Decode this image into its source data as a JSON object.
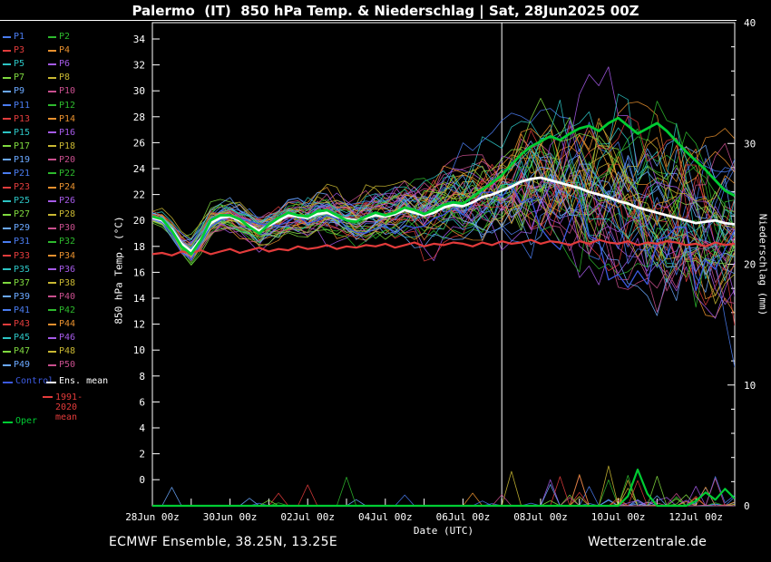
{
  "title": "Palermo  (IT)  850 hPa Temp. & Niederschlag | Sat, 28Jun2025 00Z",
  "footer": {
    "left": "ECMWF Ensemble, 38.25N, 13.25E",
    "right": "Wetterzentrale.de"
  },
  "colors": {
    "background": "#000000",
    "foreground": "#ffffff"
  },
  "axes": {
    "left_label": "850 hPa Temp. (°C)",
    "right_label": "Niederschlag (mm)",
    "x_label": "Date (UTC)",
    "temp_ticks": [
      34,
      32,
      30,
      28,
      26,
      24,
      22,
      20,
      18,
      16,
      14,
      12,
      10,
      8,
      6,
      4,
      2,
      0
    ],
    "precip_ticks": [
      40,
      30,
      20,
      10,
      0
    ],
    "x_ticks": [
      "28Jun 00z",
      "30Jun 00z",
      "02Jul 00z",
      "04Jul 00z",
      "06Jul 00z",
      "08Jul 00z",
      "10Jul 00z",
      "12Jul 00z"
    ]
  },
  "legend": {
    "members_prefix": "P",
    "member_count": 50,
    "palette": [
      "#4a7cf0",
      "#2db92d",
      "#e03c3c",
      "#e8902e",
      "#2cc4c4",
      "#a55ae8",
      "#7fd93f",
      "#c9b832",
      "#6aa8ff",
      "#c94f8e"
    ],
    "special": [
      {
        "label": "Control",
        "color": "#3c5ae0"
      },
      {
        "label": "Ens. mean",
        "color": "#ffffff"
      },
      {
        "label": "1991-2020 mean",
        "color": "#e33b3b"
      },
      {
        "label": "Oper",
        "color": "#00cc33"
      }
    ]
  },
  "chart_data": {
    "type": "line",
    "title": "Palermo (IT) 850 hPa Temp. & Niederschlag | Sat, 28Jun2025 00Z",
    "xlabel": "Date (UTC)",
    "ylabel_left": "850 hPa Temp. (°C)",
    "ylabel_right": "Niederschlag (mm)",
    "y_left_range": [
      0,
      34
    ],
    "y_right_range": [
      0,
      40
    ],
    "x_tick_labels": [
      "28Jun 00z",
      "30Jun 00z",
      "02Jul 00z",
      "04Jul 00z",
      "06Jul 00z",
      "08Jul 00z",
      "10Jul 00z",
      "12Jul 00z"
    ],
    "time_step_hours": 6,
    "divider_index": 36,
    "render_seed": 20250628,
    "ensemble": {
      "member_count": 50
    },
    "series": {
      "ens_mean_temp": [
        20.2,
        20.0,
        19.3,
        18.2,
        17.6,
        18.6,
        19.8,
        20.2,
        20.3,
        20.0,
        19.6,
        19.2,
        19.6,
        20.0,
        20.4,
        20.3,
        20.2,
        20.5,
        20.6,
        20.3,
        20.1,
        20.0,
        20.2,
        20.4,
        20.3,
        20.5,
        20.8,
        20.6,
        20.4,
        20.6,
        21.0,
        21.2,
        21.1,
        21.4,
        21.8,
        22.0,
        22.3,
        22.6,
        23.0,
        23.2,
        23.3,
        23.1,
        22.9,
        22.7,
        22.5,
        22.2,
        22.0,
        21.8,
        21.5,
        21.3,
        21.0,
        20.8,
        20.6,
        20.4,
        20.2,
        20.0,
        19.8,
        19.9,
        20.0,
        19.8,
        19.7
      ],
      "oper_temp": [
        20.3,
        20.1,
        19.2,
        18.0,
        17.4,
        18.5,
        20.0,
        20.4,
        20.4,
        20.1,
        19.5,
        19.0,
        19.7,
        20.2,
        20.6,
        20.4,
        20.3,
        20.7,
        20.8,
        20.4,
        20.0,
        19.9,
        20.3,
        20.6,
        20.4,
        20.6,
        21.0,
        20.8,
        20.5,
        20.8,
        21.2,
        21.4,
        21.3,
        21.8,
        22.4,
        22.9,
        23.5,
        24.3,
        25.1,
        25.7,
        26.1,
        26.5,
        26.2,
        26.7,
        27.1,
        27.3,
        26.9,
        27.5,
        27.9,
        27.3,
        26.7,
        27.1,
        27.5,
        26.9,
        26.1,
        25.3,
        24.6,
        23.9,
        23.1,
        22.3,
        21.9
      ],
      "clim_1991_2020_temp": [
        17.4,
        17.5,
        17.3,
        17.6,
        17.5,
        17.7,
        17.4,
        17.6,
        17.8,
        17.5,
        17.7,
        17.9,
        17.6,
        17.8,
        17.7,
        18.0,
        17.8,
        17.9,
        18.1,
        17.8,
        18.0,
        17.9,
        18.1,
        18.0,
        18.2,
        17.9,
        18.1,
        18.3,
        18.0,
        18.2,
        18.1,
        18.3,
        18.2,
        18.0,
        18.3,
        18.1,
        18.4,
        18.2,
        18.3,
        18.5,
        18.2,
        18.4,
        18.3,
        18.1,
        18.4,
        18.2,
        18.5,
        18.3,
        18.2,
        18.4,
        18.1,
        18.3,
        18.2,
        18.4,
        18.3,
        18.1,
        18.2,
        18.0,
        18.3,
        18.1,
        18.2
      ],
      "ensemble_spread_std": [
        0.3,
        0.35,
        0.4,
        0.45,
        0.5,
        0.55,
        0.6,
        0.6,
        0.65,
        0.7,
        0.7,
        0.75,
        0.8,
        0.8,
        0.85,
        0.85,
        0.9,
        0.9,
        0.95,
        1.0,
        1.0,
        1.05,
        1.1,
        1.15,
        1.2,
        1.25,
        1.3,
        1.35,
        1.4,
        1.5,
        1.6,
        1.7,
        1.8,
        1.9,
        2.0,
        2.1,
        2.2,
        2.4,
        2.6,
        2.8,
        3.0,
        3.1,
        3.2,
        3.3,
        3.4,
        3.4,
        3.5,
        3.5,
        3.6,
        3.6,
        3.6,
        3.6,
        3.6,
        3.6,
        3.6,
        3.6,
        3.6,
        3.6,
        3.6,
        3.6,
        3.6
      ],
      "oper_precip_mm": [
        0,
        0,
        0,
        0,
        0,
        0,
        0,
        0,
        0,
        0,
        0,
        0,
        0,
        0,
        0,
        0,
        0,
        0,
        0,
        0,
        0,
        0,
        0,
        0,
        0,
        0,
        0,
        0,
        0,
        0,
        0,
        0,
        0,
        0,
        0,
        0,
        0,
        0,
        0,
        0,
        0,
        0,
        0,
        0,
        0,
        0,
        0,
        0,
        0,
        0.8,
        3.0,
        1.0,
        0,
        0,
        0,
        0,
        0.4,
        1.1,
        0.5,
        1.4,
        0.6
      ]
    }
  }
}
